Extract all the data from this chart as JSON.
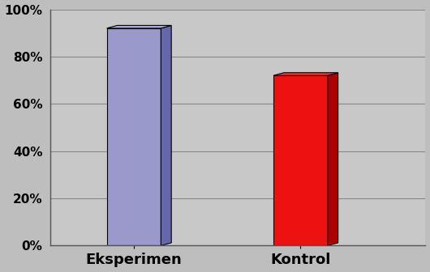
{
  "categories": [
    "Eksperimen",
    "Kontrol"
  ],
  "values": [
    0.92,
    0.72
  ],
  "bar_face_colors": [
    "#9999CC",
    "#EE1111"
  ],
  "bar_side_colors": [
    "#6666AA",
    "#AA0000"
  ],
  "bar_top_colors": [
    "#AAAADD",
    "#FF3333"
  ],
  "background_color": "#BEBEBE",
  "plot_bg_color": "#C8C8C8",
  "ylim": [
    0,
    1.0
  ],
  "yticks": [
    0.0,
    0.2,
    0.4,
    0.6,
    0.8,
    1.0
  ],
  "ytick_labels": [
    "0%",
    "20%",
    "40%",
    "60%",
    "80%",
    "100%"
  ],
  "xlabel_fontsize": 13,
  "bar_width": 0.13,
  "bar_depth": 0.025,
  "grid_color": "#888888",
  "x_positions": [
    0.3,
    0.7
  ]
}
